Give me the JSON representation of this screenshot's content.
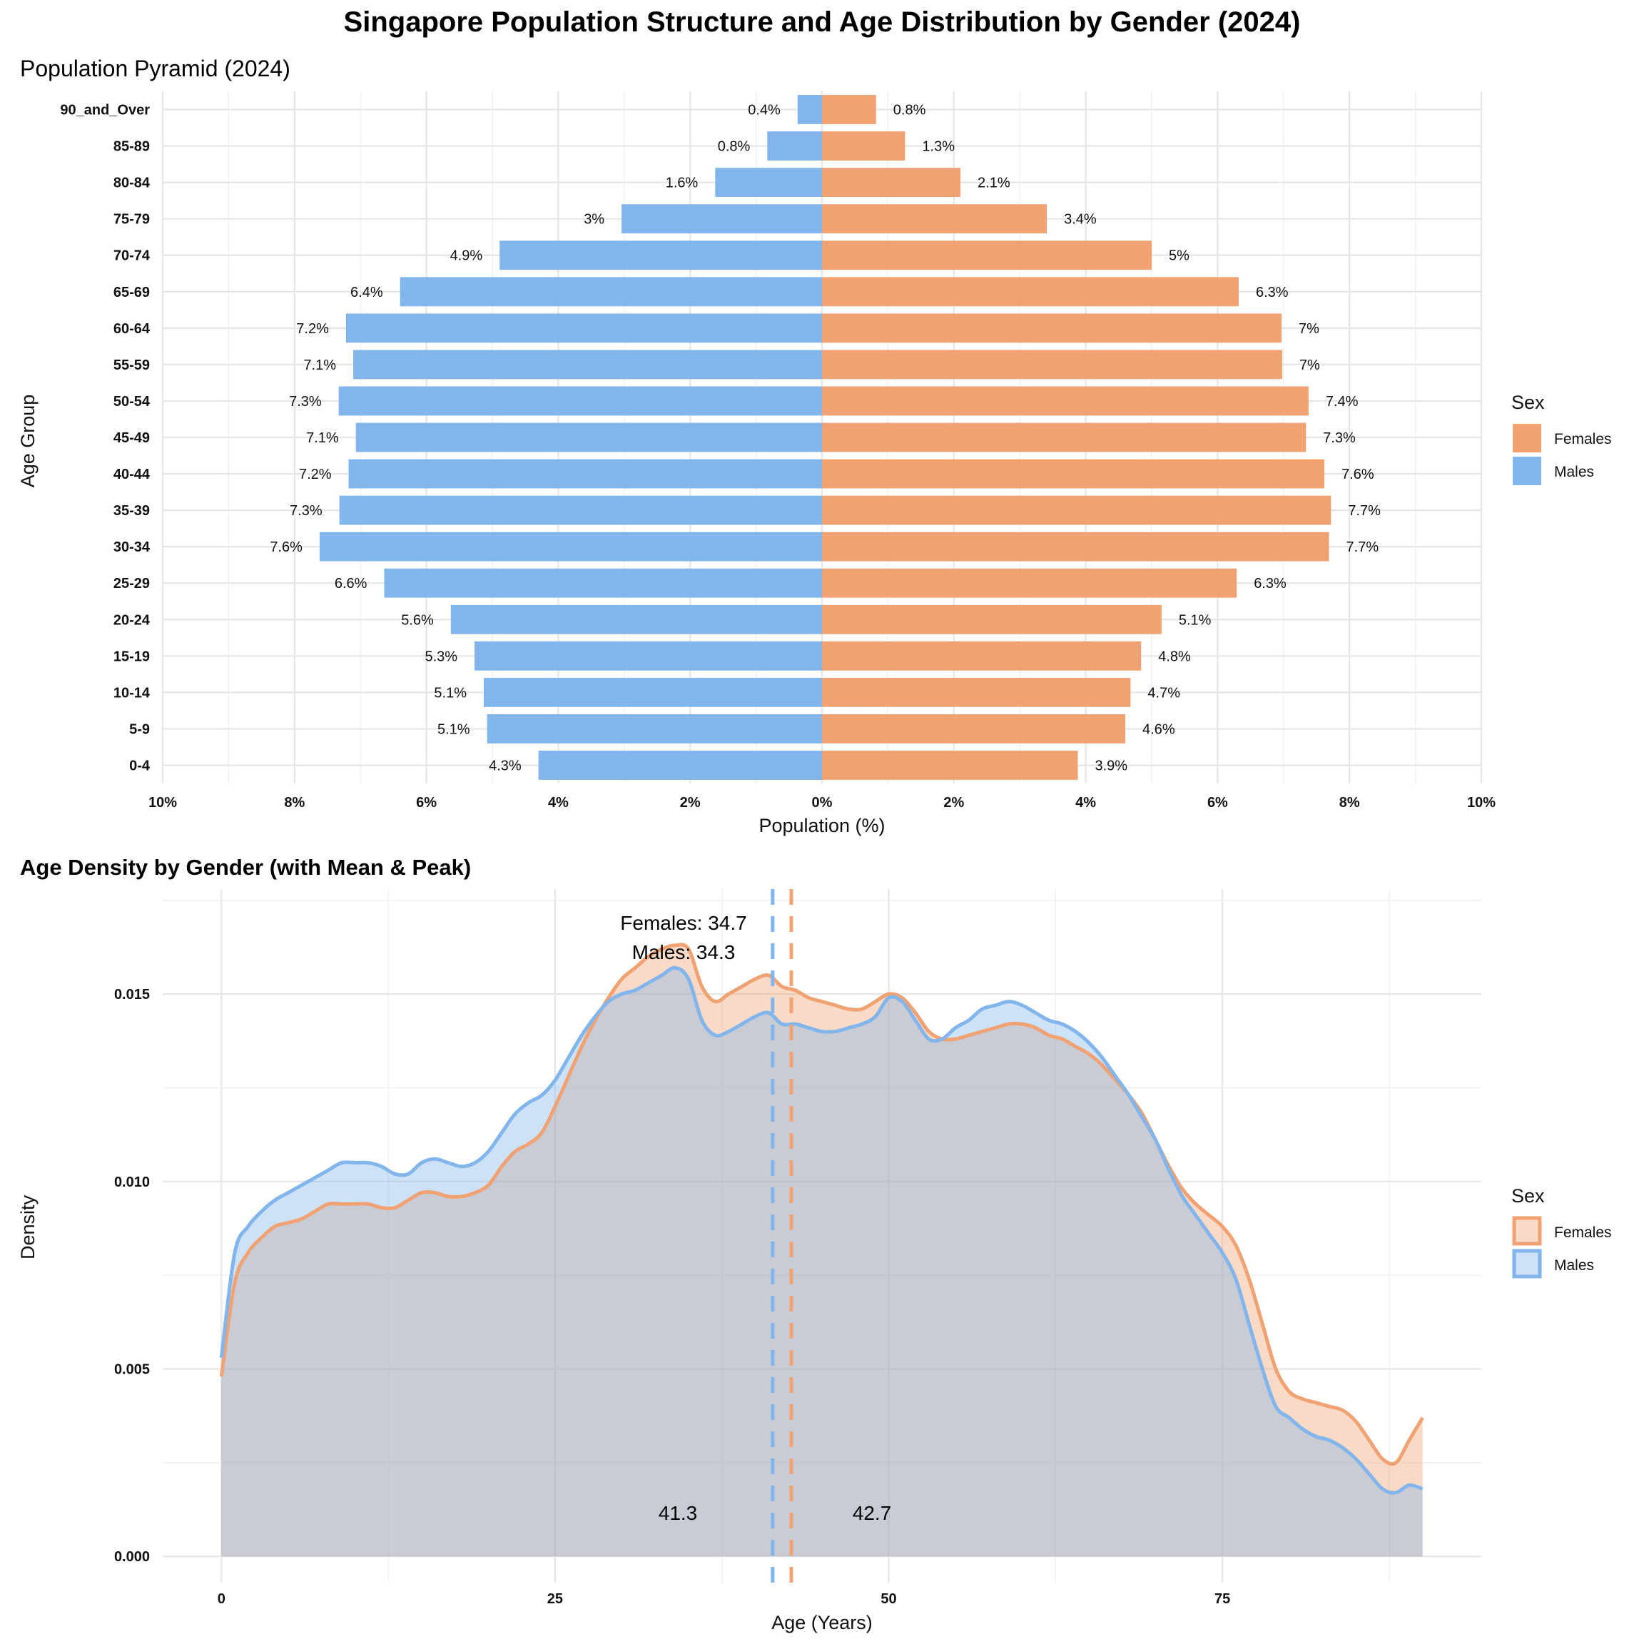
{
  "title": "Singapore Population Structure and Age Distribution by Gender (2024)",
  "colors": {
    "females": "#F0A273",
    "males": "#82B5EC",
    "overlap": "#c7c8d3"
  },
  "pyramid": {
    "subtitle": "Population Pyramid (2024)",
    "legend_title": "Sex",
    "legend_items": [
      "Females",
      "Males"
    ]
  },
  "density": {
    "subtitle": "Age Density by Gender (with Mean & Peak)",
    "legend_title": "Sex",
    "legend_items": [
      "Females",
      "Males"
    ],
    "annotations": {
      "females_peak": "Females: 34.7",
      "males_peak": "Males: 34.3",
      "males_mean": "41.3",
      "females_mean": "42.7"
    }
  },
  "chart_data": [
    {
      "type": "bar",
      "orientation": "horizontal",
      "title": "Population Pyramid (2024)",
      "xlabel": "Population (%)",
      "ylabel": "Age Group",
      "xlim": [
        -10,
        10
      ],
      "x_ticks": [
        "10%",
        "8%",
        "6%",
        "4%",
        "2%",
        "0%",
        "2%",
        "4%",
        "6%",
        "8%",
        "10%"
      ],
      "x_tick_values": [
        -10,
        -8,
        -6,
        -4,
        -2,
        0,
        2,
        4,
        6,
        8,
        10
      ],
      "legend_placement": "right",
      "categories": [
        "0-4",
        "5-9",
        "10-14",
        "15-19",
        "20-24",
        "25-29",
        "30-34",
        "35-39",
        "40-44",
        "45-49",
        "50-54",
        "55-59",
        "60-64",
        "65-69",
        "70-74",
        "75-79",
        "80-84",
        "85-89",
        "90_and_Over"
      ],
      "series": [
        {
          "name": "Females",
          "values": [
            3.88,
            4.6,
            4.68,
            4.84,
            5.15,
            6.29,
            7.69,
            7.72,
            7.62,
            7.34,
            7.38,
            6.98,
            6.97,
            6.32,
            5.0,
            3.41,
            2.1,
            1.26,
            0.82
          ],
          "labels": [
            "3.9%",
            "4.6%",
            "4.7%",
            "4.8%",
            "5.1%",
            "6.3%",
            "7.7%",
            "7.7%",
            "7.6%",
            "7.3%",
            "7.4%",
            "7%",
            "7%",
            "6.3%",
            "5%",
            "3.4%",
            "2.1%",
            "1.3%",
            "0.8%"
          ]
        },
        {
          "name": "Males",
          "values": [
            4.3,
            5.08,
            5.13,
            5.27,
            5.63,
            6.64,
            7.62,
            7.32,
            7.18,
            7.07,
            7.33,
            7.11,
            7.22,
            6.4,
            4.89,
            3.04,
            1.62,
            0.83,
            0.37
          ],
          "labels": [
            "4.3%",
            "5.1%",
            "5.1%",
            "5.3%",
            "5.6%",
            "6.6%",
            "7.6%",
            "7.3%",
            "7.2%",
            "7.1%",
            "7.3%",
            "7.1%",
            "7.2%",
            "6.4%",
            "4.9%",
            "3%",
            "1.6%",
            "0.8%",
            "0.4%"
          ]
        }
      ]
    },
    {
      "type": "area",
      "title": "Age Density by Gender (with Mean & Peak)",
      "xlabel": "Age (Years)",
      "ylabel": "Density",
      "xlim": [
        -4.4,
        94.4
      ],
      "ylim": [
        -0.0007,
        0.0178
      ],
      "x_ticks": [
        0,
        25,
        50,
        75
      ],
      "y_ticks": [
        "0.000",
        "0.005",
        "0.010",
        "0.015"
      ],
      "y_tick_values": [
        0,
        0.005,
        0.01,
        0.015
      ],
      "legend_placement": "right",
      "x": [
        0,
        1,
        2,
        3,
        4,
        5,
        6,
        7,
        8,
        9,
        10,
        11,
        12,
        13,
        14,
        15,
        16,
        17,
        18,
        19,
        20,
        21,
        22,
        23,
        24,
        25,
        26,
        27,
        28,
        29,
        30,
        31,
        32,
        33,
        34,
        35,
        36,
        37,
        38,
        39,
        40,
        41,
        42,
        43,
        44,
        45,
        46,
        47,
        48,
        49,
        50,
        51,
        52,
        53,
        54,
        55,
        56,
        57,
        58,
        59,
        60,
        61,
        62,
        63,
        64,
        65,
        66,
        67,
        68,
        69,
        70,
        71,
        72,
        73,
        74,
        75,
        76,
        77,
        78,
        79,
        80,
        81,
        82,
        83,
        84,
        85,
        86,
        87,
        88,
        89,
        90
      ],
      "series": [
        {
          "name": "Females",
          "mean": 42.7,
          "peak": 34.7,
          "values": [
            0.0048,
            0.0073,
            0.0081,
            0.0085,
            0.0088,
            0.0089,
            0.009,
            0.0092,
            0.0094,
            0.0094,
            0.0094,
            0.0094,
            0.0093,
            0.0093,
            0.0095,
            0.0097,
            0.0097,
            0.0096,
            0.0096,
            0.0097,
            0.0099,
            0.0104,
            0.0108,
            0.011,
            0.0113,
            0.012,
            0.0128,
            0.0136,
            0.0143,
            0.0149,
            0.0154,
            0.0157,
            0.016,
            0.0162,
            0.0163,
            0.0162,
            0.0152,
            0.0148,
            0.015,
            0.0152,
            0.0154,
            0.0155,
            0.0152,
            0.0151,
            0.0149,
            0.0148,
            0.0147,
            0.0146,
            0.0146,
            0.0148,
            0.015,
            0.0149,
            0.0145,
            0.014,
            0.0138,
            0.0138,
            0.0139,
            0.014,
            0.0141,
            0.0142,
            0.0142,
            0.0141,
            0.0139,
            0.0138,
            0.0136,
            0.0134,
            0.0131,
            0.0127,
            0.0123,
            0.0118,
            0.0111,
            0.0104,
            0.0098,
            0.0094,
            0.0091,
            0.0088,
            0.0083,
            0.0074,
            0.0062,
            0.005,
            0.0044,
            0.0042,
            0.0041,
            0.004,
            0.0039,
            0.0036,
            0.0031,
            0.0026,
            0.0025,
            0.0031,
            0.0037
          ]
        },
        {
          "name": "Males",
          "mean": 41.3,
          "peak": 34.3,
          "values": [
            0.0053,
            0.0081,
            0.0088,
            0.0092,
            0.0095,
            0.0097,
            0.0099,
            0.0101,
            0.0103,
            0.0105,
            0.0105,
            0.0105,
            0.0104,
            0.0102,
            0.0102,
            0.0105,
            0.0106,
            0.0105,
            0.0104,
            0.0105,
            0.0108,
            0.0113,
            0.0118,
            0.0121,
            0.0123,
            0.0127,
            0.0133,
            0.0139,
            0.0144,
            0.0148,
            0.015,
            0.0151,
            0.0153,
            0.0155,
            0.0157,
            0.0154,
            0.0143,
            0.0139,
            0.014,
            0.0142,
            0.0144,
            0.0145,
            0.0142,
            0.0142,
            0.0141,
            0.014,
            0.014,
            0.0141,
            0.0142,
            0.0144,
            0.0149,
            0.0148,
            0.0143,
            0.0138,
            0.0138,
            0.0141,
            0.0143,
            0.0146,
            0.0147,
            0.0148,
            0.0147,
            0.0145,
            0.0143,
            0.0142,
            0.014,
            0.0137,
            0.0133,
            0.0128,
            0.0123,
            0.0117,
            0.0111,
            0.0103,
            0.0096,
            0.0091,
            0.0086,
            0.0081,
            0.0074,
            0.0062,
            0.005,
            0.004,
            0.0037,
            0.0034,
            0.0032,
            0.0031,
            0.0029,
            0.0026,
            0.0022,
            0.0018,
            0.0017,
            0.0019,
            0.0018
          ]
        }
      ]
    }
  ]
}
